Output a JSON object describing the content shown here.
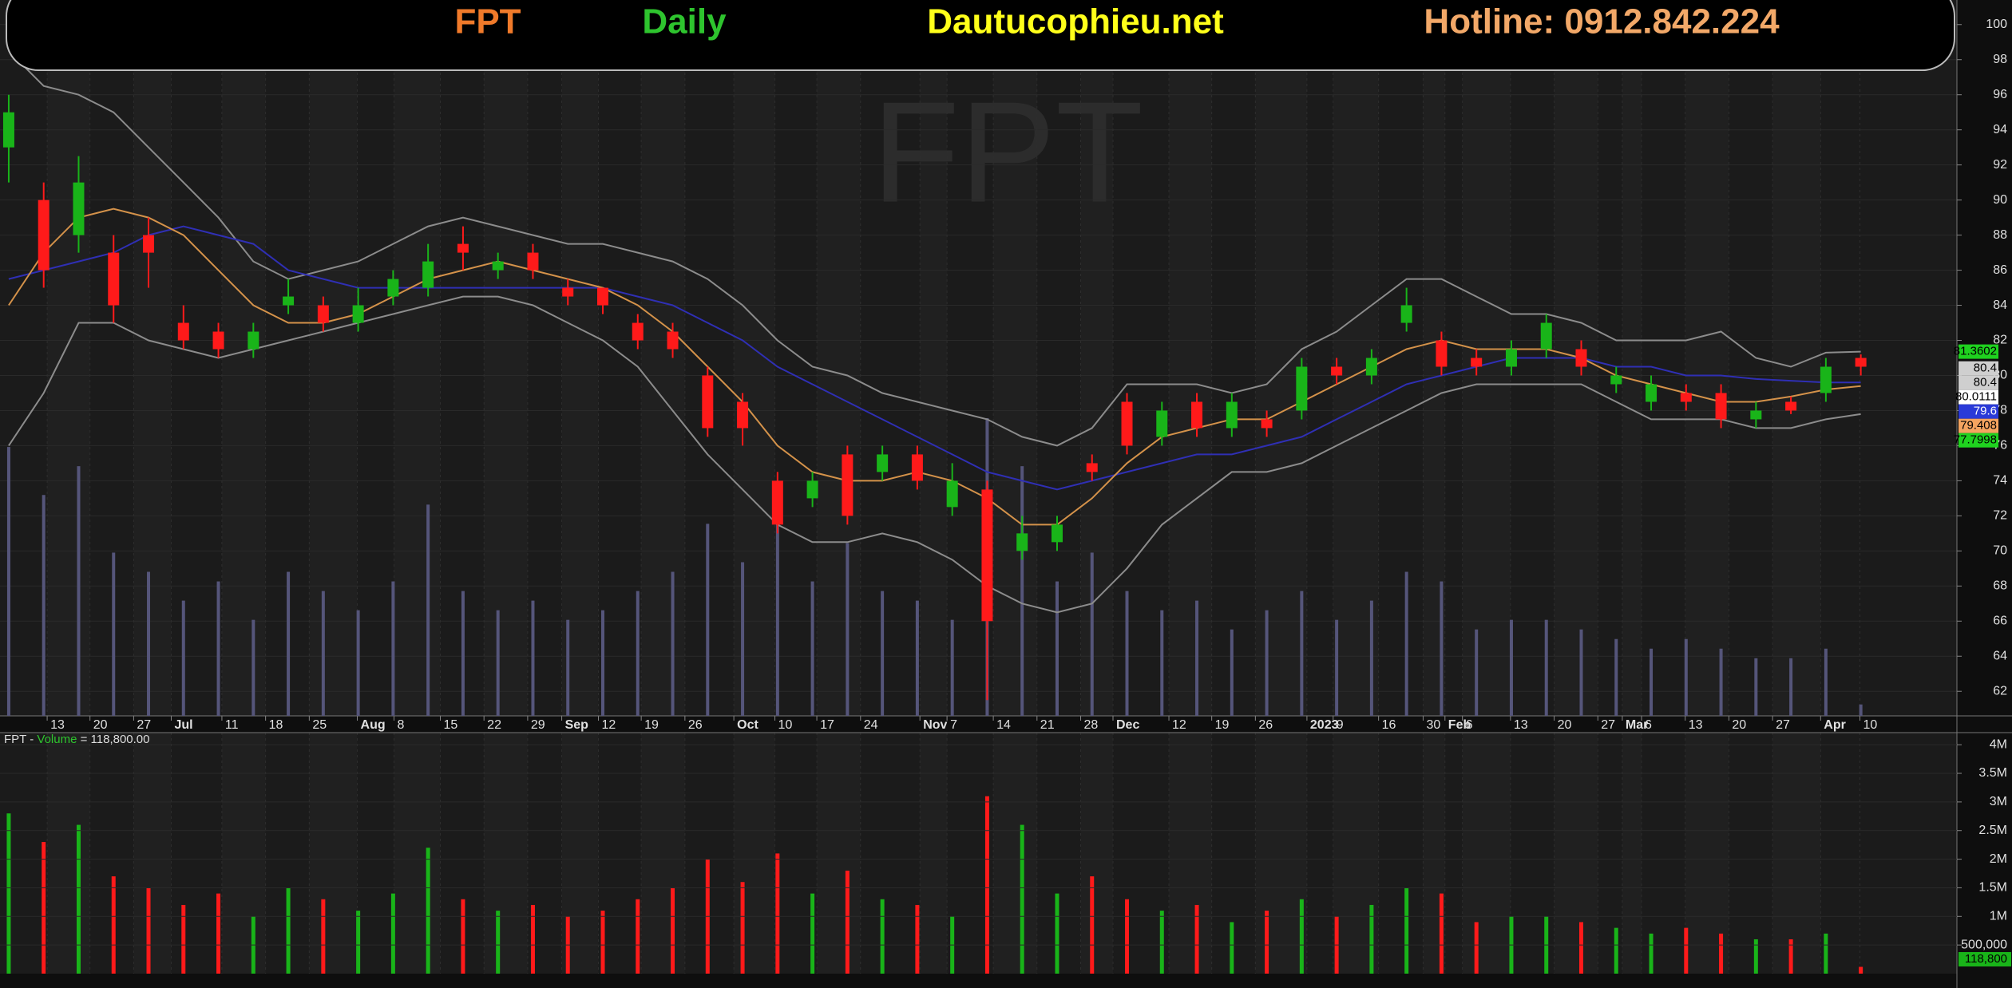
{
  "chart_data": {
    "type": "candlestick",
    "header": [
      {
        "text": "FPT",
        "color": "#f07a2a"
      },
      {
        "text": "Daily",
        "color": "#2ec42e"
      },
      {
        "text": "Dautucophieu.net",
        "color": "#ffff1a"
      },
      {
        "text": "Hotline: 0912.842.224",
        "color": "#f2a868"
      }
    ],
    "watermark": "FPT",
    "up_color": "#19b419",
    "down_color": "#ff1a1a",
    "xlim": [
      0,
      224
    ],
    "xticks": [
      {
        "value": 5.4,
        "label": "13"
      },
      {
        "value": 10.3,
        "label": "20"
      },
      {
        "value": 15.3,
        "label": "27"
      },
      {
        "value": 19.6,
        "label": "Jul"
      },
      {
        "value": 25.4,
        "label": "11"
      },
      {
        "value": 30.4,
        "label": "18"
      },
      {
        "value": 35.4,
        "label": "25"
      },
      {
        "value": 40.9,
        "label": "Aug"
      },
      {
        "value": 45.1,
        "label": "8"
      },
      {
        "value": 50.4,
        "label": "15"
      },
      {
        "value": 55.4,
        "label": "22"
      },
      {
        "value": 60.4,
        "label": "29"
      },
      {
        "value": 64.3,
        "label": "Sep"
      },
      {
        "value": 68.5,
        "label": "12"
      },
      {
        "value": 73.4,
        "label": "19"
      },
      {
        "value": 78.4,
        "label": "26"
      },
      {
        "value": 84,
        "label": "Oct"
      },
      {
        "value": 88.7,
        "label": "10"
      },
      {
        "value": 93.5,
        "label": "17"
      },
      {
        "value": 98.5,
        "label": "24"
      },
      {
        "value": 105.3,
        "label": "Nov"
      },
      {
        "value": 108.4,
        "label": "7"
      },
      {
        "value": 113.7,
        "label": "14"
      },
      {
        "value": 118.7,
        "label": "21"
      },
      {
        "value": 123.7,
        "label": "28"
      },
      {
        "value": 127.4,
        "label": "Dec"
      },
      {
        "value": 133.8,
        "label": "12"
      },
      {
        "value": 138.7,
        "label": "19"
      },
      {
        "value": 143.7,
        "label": "26"
      },
      {
        "value": 149.6,
        "label": "2023"
      },
      {
        "value": 152.6,
        "label": "9"
      },
      {
        "value": 157.8,
        "label": "16"
      },
      {
        "value": 162.9,
        "label": "30"
      },
      {
        "value": 165.4,
        "label": "Feb"
      },
      {
        "value": 167.4,
        "label": "6"
      },
      {
        "value": 172.9,
        "label": "13"
      },
      {
        "value": 177.9,
        "label": "20"
      },
      {
        "value": 182.9,
        "label": "27"
      },
      {
        "value": 185.7,
        "label": "Mar"
      },
      {
        "value": 187.9,
        "label": "6"
      },
      {
        "value": 192.9,
        "label": "13"
      },
      {
        "value": 197.9,
        "label": "20"
      },
      {
        "value": 202.9,
        "label": "27"
      },
      {
        "value": 208.4,
        "label": "Apr"
      },
      {
        "value": 212.9,
        "label": "10"
      }
    ],
    "ylim": [
      60.6,
      101.4
    ],
    "yticks": [
      62,
      64,
      66,
      68,
      70,
      72,
      74,
      76,
      78,
      80,
      82,
      84,
      86,
      88,
      90,
      92,
      94,
      96,
      98,
      100
    ],
    "grid": true,
    "x": [
      1,
      5,
      9,
      13,
      17,
      21,
      25,
      29,
      33,
      37,
      41,
      45,
      49,
      53,
      57,
      61,
      65,
      69,
      73,
      77,
      81,
      85,
      89,
      93,
      97,
      101,
      105,
      109,
      113,
      117,
      121,
      125,
      129,
      133,
      137,
      141,
      145,
      149,
      153,
      157,
      161,
      165,
      169,
      173,
      177,
      181,
      185,
      189,
      193,
      197,
      201,
      205,
      209,
      213
    ],
    "open": [
      93,
      90,
      88,
      87,
      88,
      83,
      82.5,
      81.5,
      84,
      84,
      83,
      84.5,
      85,
      87.5,
      86,
      87,
      85,
      85,
      83,
      82.5,
      80,
      78.5,
      74,
      73,
      75.5,
      74.5,
      75.5,
      72.5,
      73.5,
      70,
      70.5,
      75,
      78.5,
      76.5,
      78.5,
      77,
      77.5,
      78,
      80.5,
      80,
      83,
      82,
      81,
      80.5,
      81.5,
      81.5,
      79.5,
      78.5,
      79,
      79,
      77.5,
      78.5,
      79,
      81
    ],
    "high": [
      96,
      91,
      92.5,
      88,
      89,
      84,
      83,
      83,
      85.5,
      84.5,
      85,
      86,
      87.5,
      88.5,
      87,
      87.5,
      85.5,
      85,
      83.5,
      83,
      80.5,
      79,
      74.5,
      74.5,
      76,
      76,
      76,
      75,
      74,
      72,
      72,
      75.5,
      79,
      78.5,
      79,
      79,
      78,
      81,
      81,
      81.5,
      85,
      82.5,
      81.5,
      82,
      83.5,
      82,
      80.5,
      80,
      79.5,
      79.5,
      78.5,
      78.8,
      81,
      81.2
    ],
    "low": [
      91,
      85,
      87,
      83,
      85,
      81.5,
      81,
      81,
      83.5,
      82.5,
      82.5,
      84,
      84.5,
      86,
      85.5,
      85.5,
      84,
      83.5,
      81.5,
      81,
      76.5,
      76,
      71,
      72.5,
      71.5,
      74,
      73.5,
      72,
      61.5,
      69.5,
      70,
      74,
      75.5,
      76,
      76.5,
      76.5,
      76.5,
      77.5,
      79.5,
      79.5,
      82.5,
      80,
      80,
      80,
      81,
      80,
      79,
      78,
      78,
      77,
      77,
      77.8,
      78.5,
      80
    ],
    "close": [
      95,
      86,
      91,
      84,
      87,
      82,
      81.5,
      82.5,
      84.5,
      83,
      84,
      85.5,
      86.5,
      87,
      86.5,
      86,
      84.5,
      84,
      82,
      81.5,
      77,
      77,
      71.5,
      74,
      72,
      75.5,
      74,
      74,
      66,
      71,
      71.5,
      74.5,
      76,
      78,
      77,
      78.5,
      77,
      80.5,
      80,
      81,
      84,
      80.5,
      80.5,
      81.5,
      83,
      80.5,
      80,
      79.5,
      78.5,
      77.5,
      78,
      78,
      80.5,
      80.5
    ],
    "overlays": [
      {
        "color": "#8c8c8c",
        "values": [
          98.5,
          96.5,
          96,
          95,
          93,
          91,
          89,
          86.5,
          85.5,
          86,
          86.5,
          87.5,
          88.5,
          89,
          88.5,
          88,
          87.5,
          87.5,
          87,
          86.5,
          85.5,
          84,
          82,
          80.5,
          80,
          79,
          78.5,
          78,
          77.5,
          76.5,
          76,
          77,
          79.5,
          79.5,
          79.5,
          79,
          79.5,
          81.5,
          82.5,
          84,
          85.5,
          85.5,
          84.5,
          83.5,
          83.5,
          83,
          82,
          82,
          82,
          82.5,
          81,
          80.5,
          81.3,
          81.36
        ]
      },
      {
        "color": "#8c8c8c",
        "values": [
          76,
          79,
          83,
          83,
          82,
          81.5,
          81,
          81.5,
          82,
          82.5,
          83,
          83.5,
          84,
          84.5,
          84.5,
          84,
          83,
          82,
          80.5,
          78,
          75.5,
          73.5,
          71.5,
          70.5,
          70.5,
          71,
          70.5,
          69.5,
          68,
          67,
          66.5,
          67,
          69,
          71.5,
          73,
          74.5,
          74.5,
          75,
          76,
          77,
          78,
          79,
          79.5,
          79.5,
          79.5,
          79.5,
          78.5,
          77.5,
          77.5,
          77.5,
          77,
          77,
          77.5,
          77.8
        ]
      },
      {
        "color": "#2f2fb4",
        "values": [
          85.5,
          86,
          86.5,
          87,
          88,
          88.5,
          88,
          87.5,
          86,
          85.5,
          85,
          85,
          85,
          85,
          85,
          85,
          85,
          85,
          84.5,
          84,
          83,
          82,
          80.5,
          79.5,
          78.5,
          77.5,
          76.5,
          75.5,
          74.5,
          74,
          73.5,
          74,
          74.5,
          75,
          75.5,
          75.5,
          76,
          76.5,
          77.5,
          78.5,
          79.5,
          80,
          80.5,
          81,
          81,
          81,
          80.5,
          80.5,
          80,
          80,
          79.8,
          79.7,
          79.6,
          79.6
        ]
      },
      {
        "color": "#d4924a",
        "values": [
          84,
          87,
          89,
          89.5,
          89,
          88,
          86,
          84,
          83,
          83,
          83.5,
          84.5,
          85.5,
          86,
          86.5,
          86,
          85.5,
          85,
          84,
          82.5,
          80.5,
          78.5,
          76,
          74.5,
          74,
          74,
          74.5,
          74,
          73,
          71.5,
          71.5,
          73,
          75,
          76.5,
          77,
          77.5,
          77.5,
          78.5,
          79.5,
          80.5,
          81.5,
          82,
          81.5,
          81.5,
          81.5,
          81,
          80,
          79.5,
          79,
          78.5,
          78.5,
          78.8,
          79.2,
          79.4
        ]
      }
    ],
    "last_labels": [
      {
        "value": 81.3602,
        "color": "#1fd21f"
      },
      {
        "value": 80.4,
        "color": "#cfcfcf"
      },
      {
        "value": 80.4,
        "color": "#cfcfcf"
      },
      {
        "value": 80.0111,
        "color": "#ffffff"
      },
      {
        "value": 79.6,
        "color": "#2a3ad8"
      },
      {
        "value": 79.408,
        "color": "#f4a460"
      },
      {
        "value": 77.7998,
        "color": "#1fd21f"
      }
    ],
    "volume": {
      "caption": [
        "FPT - ",
        "Volume",
        " = 118,800.00"
      ],
      "values": [
        2800000,
        2300000,
        2600000,
        1700000,
        1500000,
        1200000,
        1400000,
        1000000,
        1500000,
        1300000,
        1100000,
        1400000,
        2200000,
        1300000,
        1100000,
        1200000,
        1000000,
        1100000,
        1300000,
        1500000,
        2000000,
        1600000,
        2100000,
        1400000,
        1800000,
        1300000,
        1200000,
        1000000,
        3100000,
        2600000,
        1400000,
        1700000,
        1300000,
        1100000,
        1200000,
        900000,
        1100000,
        1300000,
        1000000,
        1200000,
        1500000,
        1400000,
        900000,
        1000000,
        1000000,
        900000,
        800000,
        700000,
        800000,
        700000,
        600000,
        600000,
        700000,
        118800
      ],
      "last_value_label": "118,800",
      "ylim": [
        0,
        4100000
      ],
      "yticks": [
        {
          "value": 500000,
          "label": "500,000"
        },
        {
          "value": 1000000,
          "label": "1M"
        },
        {
          "value": 1500000,
          "label": "1.5M"
        },
        {
          "value": 2000000,
          "label": "2M"
        },
        {
          "value": 2500000,
          "label": "2.5M"
        },
        {
          "value": 3000000,
          "label": "3M"
        },
        {
          "value": 3500000,
          "label": "3.5M"
        },
        {
          "value": 4000000,
          "label": "4M"
        }
      ],
      "overlay_color": "#55557a"
    }
  }
}
